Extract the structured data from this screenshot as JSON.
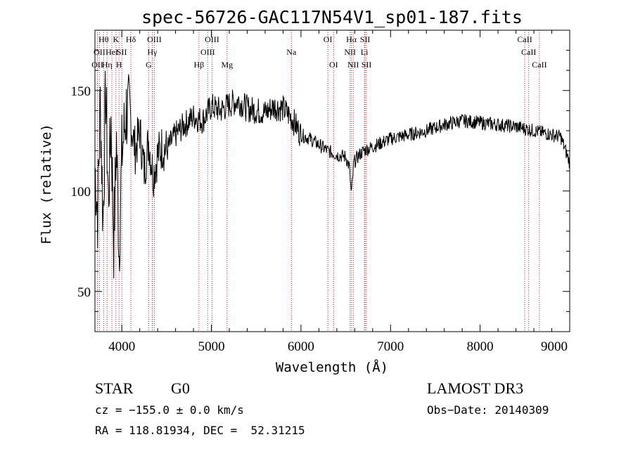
{
  "chart_data": {
    "type": "line",
    "title": "spec-56726-GAC117N54V1_sp01-187.fits",
    "xlabel": "Wavelength (Å)",
    "ylabel": "Flux (relative)",
    "xlim": [
      3700,
      9000
    ],
    "ylim": [
      30,
      180
    ],
    "x_ticks": [
      4000,
      5000,
      6000,
      7000,
      8000,
      9000
    ],
    "y_ticks": [
      50,
      100,
      150
    ],
    "series": [
      {
        "name": "flux",
        "color": "#000000",
        "x": [
          3700,
          3730,
          3760,
          3790,
          3820,
          3850,
          3880,
          3910,
          3940,
          3970,
          4000,
          4050,
          4100,
          4150,
          4200,
          4250,
          4300,
          4350,
          4400,
          4450,
          4500,
          4600,
          4700,
          4800,
          4900,
          5000,
          5100,
          5200,
          5300,
          5400,
          5500,
          5600,
          5700,
          5800,
          5900,
          6000,
          6100,
          6200,
          6300,
          6400,
          6500,
          6540,
          6563,
          6590,
          6650,
          6700,
          6800,
          6900,
          7000,
          7200,
          7400,
          7600,
          7800,
          8000,
          8200,
          8400,
          8600,
          8800,
          8900,
          9000
        ],
        "values": [
          112,
          90,
          145,
          85,
          150,
          95,
          135,
          75,
          125,
          70,
          118,
          140,
          135,
          120,
          130,
          110,
          125,
          108,
          118,
          122,
          120,
          128,
          133,
          137,
          135,
          142,
          140,
          143,
          145,
          141,
          140,
          139,
          142,
          141,
          136,
          128,
          126,
          123,
          120,
          118,
          117,
          112,
          98,
          114,
          118,
          120,
          122,
          124,
          126,
          128,
          130,
          133,
          135,
          134,
          133,
          132,
          130,
          128,
          127,
          114
        ]
      }
    ],
    "line_markers": [
      {
        "wave": 3727,
        "labels": [
          "OII"
        ],
        "row": 2
      },
      {
        "wave": 3750,
        "labels": [
          "OII"
        ],
        "row": 1
      },
      {
        "wave": 3797,
        "labels": [
          "Hθ"
        ],
        "row": 0
      },
      {
        "wave": 3835,
        "labels": [
          "Hη"
        ],
        "row": 2
      },
      {
        "wave": 3889,
        "labels": [
          "HeI"
        ],
        "row": 1
      },
      {
        "wave": 3934,
        "labels": [
          "K"
        ],
        "row": 0
      },
      {
        "wave": 3969,
        "labels": [
          "H"
        ],
        "row": 2
      },
      {
        "wave": 4000,
        "labels": [
          "SII"
        ],
        "row": 1
      },
      {
        "wave": 4101,
        "labels": [
          "Hδ"
        ],
        "row": 0
      },
      {
        "wave": 4300,
        "labels": [
          "G"
        ],
        "row": 2
      },
      {
        "wave": 4340,
        "labels": [
          "Hγ"
        ],
        "row": 1
      },
      {
        "wave": 4363,
        "labels": [
          "OIII"
        ],
        "row": 0
      },
      {
        "wave": 4861,
        "labels": [
          "Hβ"
        ],
        "row": 2
      },
      {
        "wave": 4959,
        "labels": [
          "OIII"
        ],
        "row": 1
      },
      {
        "wave": 5007,
        "labels": [
          "OIII"
        ],
        "row": 0
      },
      {
        "wave": 5175,
        "labels": [
          "Mg"
        ],
        "row": 2
      },
      {
        "wave": 5893,
        "labels": [
          "Na"
        ],
        "row": 1
      },
      {
        "wave": 6300,
        "labels": [
          "OI"
        ],
        "row": 0
      },
      {
        "wave": 6364,
        "labels": [
          "OI"
        ],
        "row": 2
      },
      {
        "wave": 6548,
        "labels": [
          "NII"
        ],
        "row": 1
      },
      {
        "wave": 6563,
        "labels": [
          "Hα"
        ],
        "row": 0
      },
      {
        "wave": 6583,
        "labels": [
          "NII"
        ],
        "row": 2
      },
      {
        "wave": 6708,
        "labels": [
          "Li"
        ],
        "row": 1
      },
      {
        "wave": 6716,
        "labels": [
          "SII"
        ],
        "row": 0
      },
      {
        "wave": 6731,
        "labels": [
          "SII"
        ],
        "row": 2
      },
      {
        "wave": 8498,
        "labels": [
          "CaII"
        ],
        "row": 0
      },
      {
        "wave": 8542,
        "labels": [
          "CaII"
        ],
        "row": 1
      },
      {
        "wave": 8662,
        "labels": [
          "CaII"
        ],
        "row": 2
      }
    ]
  },
  "info": {
    "object_class": "STAR",
    "subclass": "G0",
    "survey": "LAMOST DR3",
    "redshift": "cz = −155.0 ± 0.0 km/s",
    "obs_date": "Obs−Date: 20140309",
    "coords": "RA = 118.81934, DEC =  52.31215"
  }
}
